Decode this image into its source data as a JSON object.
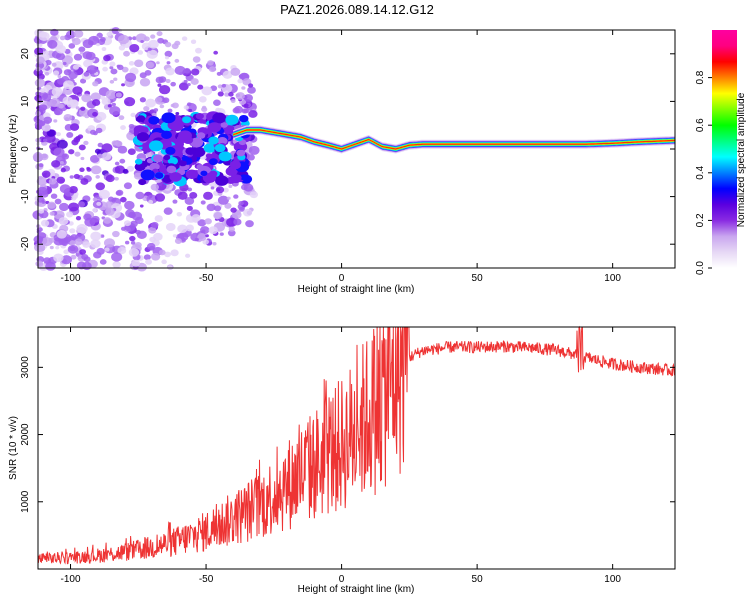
{
  "title": "PAZ1.2026.089.14.12.G12",
  "chart_data": [
    {
      "type": "heatmap",
      "name": "spectrogram",
      "xlabel": "Height of straight line (km)",
      "ylabel": "Frequency (Hz)",
      "xlim": [
        -112,
        123
      ],
      "ylim": [
        -25,
        25
      ],
      "x_ticks": [
        "-100",
        "-50",
        "0",
        "50",
        "100"
      ],
      "x_tick_values": [
        -100,
        -50,
        0,
        50,
        100
      ],
      "y_ticks": [
        "-20",
        "-10",
        "0",
        "10",
        "20"
      ],
      "y_tick_values": [
        -20,
        -10,
        0,
        10,
        20
      ],
      "ridge_x": [
        -40,
        -35,
        -30,
        -25,
        -20,
        -15,
        -10,
        -5,
        0,
        5,
        10,
        15,
        20,
        25,
        30,
        40,
        50,
        60,
        70,
        80,
        90,
        100,
        110,
        123
      ],
      "ridge_y": [
        3,
        4,
        4,
        3.5,
        3,
        2.5,
        1.5,
        0.8,
        0,
        1,
        2,
        0.5,
        0,
        0.8,
        1,
        1,
        1,
        1,
        1,
        1,
        1,
        1.2,
        1.5,
        1.8
      ],
      "colorbar": {
        "label": "Normalized spectral amplitude",
        "range": [
          0,
          1
        ],
        "ticks": [
          "0.0",
          "0.2",
          "0.4",
          "0.6",
          "0.8"
        ],
        "tick_values": [
          0,
          0.2,
          0.4,
          0.6,
          0.8
        ],
        "colors": [
          "#ffffff",
          "#e6d8f5",
          "#c9a6ef",
          "#8a2be2",
          "#5a00e0",
          "#0000ff",
          "#0080ff",
          "#00ffff",
          "#00ff80",
          "#00ff00",
          "#80ff00",
          "#ffff00",
          "#ff8000",
          "#ff0000",
          "#ff0080",
          "#ff00a0"
        ]
      }
    },
    {
      "type": "line",
      "name": "snr",
      "xlabel": "Height of straight line (km)",
      "ylabel": "SNR (10 * v/v)",
      "xlim": [
        -112,
        123
      ],
      "ylim": [
        0,
        3600
      ],
      "x_ticks": [
        "-100",
        "-50",
        "0",
        "50",
        "100"
      ],
      "x_tick_values": [
        -100,
        -50,
        0,
        50,
        100
      ],
      "y_ticks": [
        "1000",
        "2000",
        "3000"
      ],
      "y_tick_values": [
        1000,
        2000,
        3000
      ],
      "color": "#ee3333",
      "trend_x": [
        -112,
        -100,
        -90,
        -80,
        -70,
        -60,
        -50,
        -40,
        -30,
        -20,
        -10,
        0,
        5,
        10,
        15,
        20,
        25,
        30,
        40,
        50,
        60,
        70,
        80,
        90,
        100,
        110,
        123
      ],
      "trend_y": [
        150,
        170,
        200,
        250,
        320,
        420,
        560,
        750,
        950,
        1250,
        1550,
        1850,
        2050,
        2300,
        2550,
        2950,
        3150,
        3250,
        3300,
        3300,
        3310,
        3290,
        3250,
        3150,
        3050,
        3000,
        2950
      ]
    }
  ]
}
